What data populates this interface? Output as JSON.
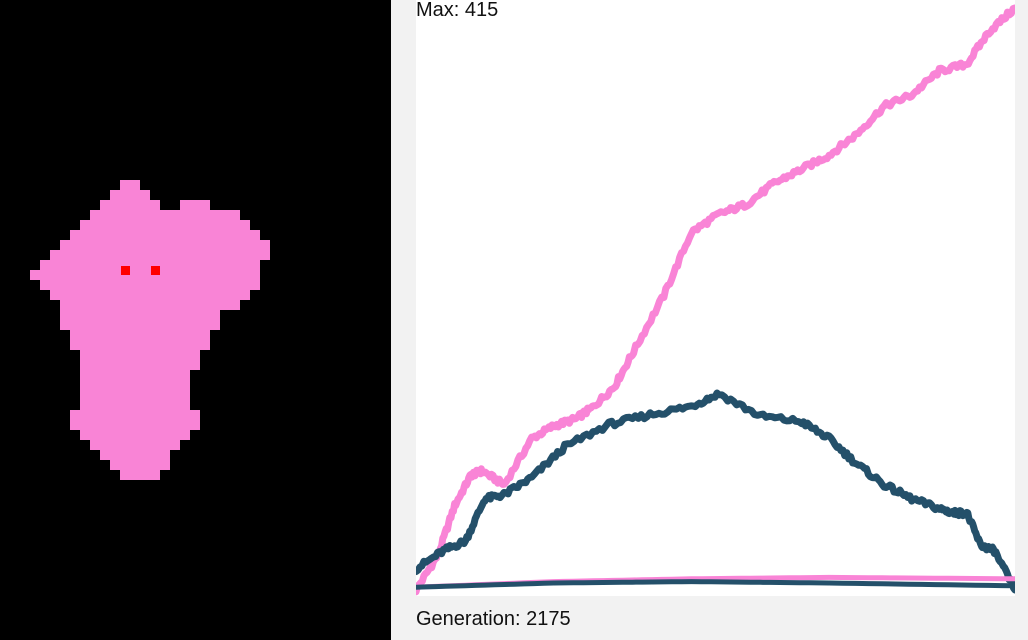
{
  "max_readout": "Max: 415",
  "generation_readout": "Generation: 2175",
  "colors": {
    "background": "#f2f2f2",
    "simulation_background": "#000000",
    "organism": "#f984d6",
    "eyes": "#ff0000",
    "chart_background": "#ffffff",
    "series_pink": "#f984d6",
    "series_dark": "#24506a"
  },
  "simulation": {
    "organism_shape": "pink pixel blob creature",
    "eyes": "two red pixels"
  },
  "chart_data": {
    "type": "line",
    "title": "",
    "xlabel": "",
    "ylabel": "",
    "xlim": [
      0,
      2175
    ],
    "ylim": [
      0,
      415
    ],
    "grid": false,
    "series": [
      {
        "color": "#f984d6",
        "x": [
          0,
          80,
          140,
          200,
          240,
          320,
          420,
          500,
          580,
          640,
          720,
          790,
          900,
          1000,
          1100,
          1200,
          1300,
          1400,
          1500,
          1600,
          1700,
          1800,
          1900,
          2000,
          2080,
          2175
        ],
        "y": [
          0,
          25,
          60,
          82,
          85,
          75,
          108,
          117,
          122,
          130,
          145,
          170,
          210,
          255,
          268,
          275,
          290,
          300,
          310,
          325,
          345,
          353,
          370,
          375,
          398,
          415
        ]
      },
      {
        "color": "#24506a",
        "x": [
          0,
          100,
          180,
          250,
          320,
          420,
          540,
          700,
          850,
          1000,
          1100,
          1250,
          1400,
          1500,
          1600,
          1700,
          1800,
          1900,
          1950,
          2000,
          2050,
          2100,
          2175
        ],
        "y": [
          15,
          28,
          35,
          65,
          68,
          80,
          102,
          118,
          125,
          131,
          140,
          124,
          120,
          108,
          90,
          75,
          65,
          58,
          55,
          55,
          32,
          28,
          0
        ]
      },
      {
        "color": "#f984d6",
        "x": [
          0,
          500,
          1000,
          1500,
          2175
        ],
        "y": [
          2,
          6,
          8,
          9,
          8
        ]
      },
      {
        "color": "#24506a",
        "x": [
          0,
          500,
          1000,
          1500,
          2175
        ],
        "y": [
          2,
          5,
          6,
          5,
          3
        ]
      }
    ]
  }
}
